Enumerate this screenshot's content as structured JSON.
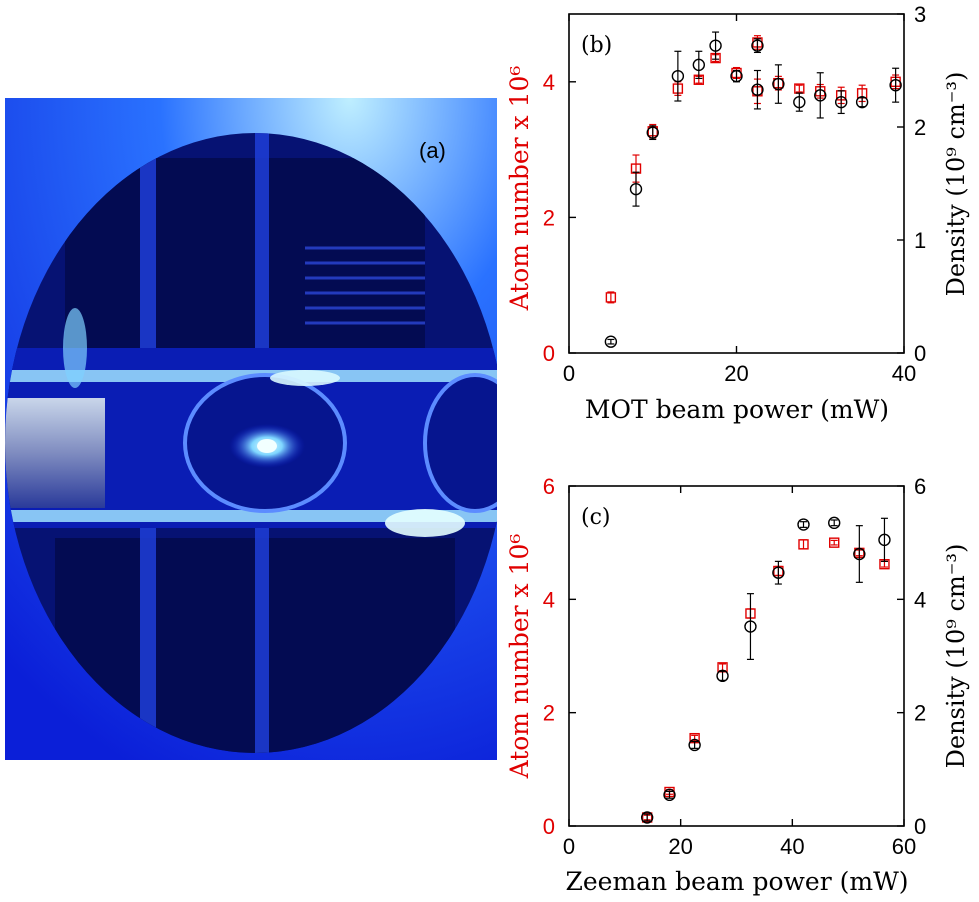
{
  "photo": {
    "label": "(a)",
    "colors": {
      "background": "#0b1fd8",
      "dark": "#020a45",
      "light": "#a7e6ff"
    }
  },
  "chart_data": [
    {
      "type": "scatter",
      "panel_label": "(b)",
      "xlabel": "MOT beam power (mW)",
      "ylabel_left": "Atom number x 10⁶",
      "ylabel_right": "Density (10⁹ cm⁻³)",
      "xlim": [
        0,
        40
      ],
      "ylim_left": [
        0,
        5
      ],
      "ylim_right": [
        0,
        3
      ],
      "x_ticks": [
        "0",
        "20",
        "40"
      ],
      "y_ticks_left": [
        "0",
        "2",
        "4"
      ],
      "y_ticks_right": [
        "0",
        "1",
        "2",
        "3"
      ],
      "grid": false,
      "colors": {
        "left_axis": "#e00000",
        "right_axis": "#000000"
      },
      "series": [
        {
          "axis": "left",
          "marker": "square",
          "color": "#e00000",
          "x": [
            5,
            8,
            10,
            13,
            15.5,
            17.5,
            20,
            22.5,
            22.5,
            25,
            27.5,
            30,
            32.5,
            35,
            39
          ],
          "y": [
            0.82,
            2.72,
            3.27,
            3.9,
            4.03,
            4.35,
            4.13,
            4.58,
            3.86,
            3.98,
            3.9,
            3.86,
            3.8,
            3.83,
            4.0
          ],
          "err": [
            0.08,
            0.2,
            0.1,
            0.1,
            0.05,
            0.05,
            0.08,
            0.1,
            0.18,
            0.1,
            0.05,
            0.1,
            0.12,
            0.12,
            0.1
          ]
        },
        {
          "axis": "right",
          "marker": "circle",
          "color": "#000000",
          "x": [
            5,
            8,
            10,
            13,
            15.5,
            17.5,
            20,
            22.5,
            22.5,
            25,
            27.5,
            30,
            32.5,
            35,
            39
          ],
          "y": [
            0.1,
            1.45,
            1.95,
            2.45,
            2.55,
            2.72,
            2.45,
            2.72,
            2.33,
            2.38,
            2.22,
            2.28,
            2.22,
            2.22,
            2.37
          ],
          "err": [
            0.02,
            0.15,
            0.06,
            0.22,
            0.12,
            0.12,
            0.05,
            0.06,
            0.17,
            0.17,
            0.08,
            0.2,
            0.1,
            0.04,
            0.15
          ]
        }
      ]
    },
    {
      "type": "scatter",
      "panel_label": "(c)",
      "xlabel": "Zeeman beam power (mW)",
      "ylabel_left": "Atom number x 10⁶",
      "ylabel_right": "Density (10⁹ cm⁻³)",
      "xlim": [
        0,
        60
      ],
      "ylim_left": [
        0,
        6
      ],
      "ylim_right": [
        0,
        6
      ],
      "x_ticks": [
        "0",
        "20",
        "40",
        "60"
      ],
      "y_ticks_left": [
        "0",
        "2",
        "4",
        "6"
      ],
      "y_ticks_right": [
        "0",
        "2",
        "4",
        "6"
      ],
      "grid": false,
      "colors": {
        "left_axis": "#e00000",
        "right_axis": "#000000"
      },
      "series": [
        {
          "axis": "left",
          "marker": "square",
          "color": "#e00000",
          "x": [
            14,
            18,
            22.5,
            27.5,
            32.5,
            37.5,
            42,
            47.5,
            52,
            56.5
          ],
          "y": [
            0.15,
            0.6,
            1.55,
            2.8,
            3.75,
            4.5,
            4.97,
            5.0,
            4.82,
            4.62
          ],
          "err": [
            0.04,
            0.04,
            0.05,
            0.06,
            0.08,
            0.08,
            0.08,
            0.04,
            0.05,
            0.05
          ]
        },
        {
          "axis": "right",
          "marker": "circle",
          "color": "#000000",
          "x": [
            14,
            18,
            22.5,
            27.5,
            32.5,
            37.5,
            42,
            47.5,
            52,
            56.5
          ],
          "y": [
            0.15,
            0.55,
            1.43,
            2.65,
            3.52,
            4.47,
            5.32,
            5.35,
            4.8,
            5.05
          ],
          "err": [
            0.06,
            0.06,
            0.06,
            0.08,
            0.58,
            0.2,
            0.05,
            0.05,
            0.5,
            0.38
          ]
        }
      ]
    }
  ]
}
